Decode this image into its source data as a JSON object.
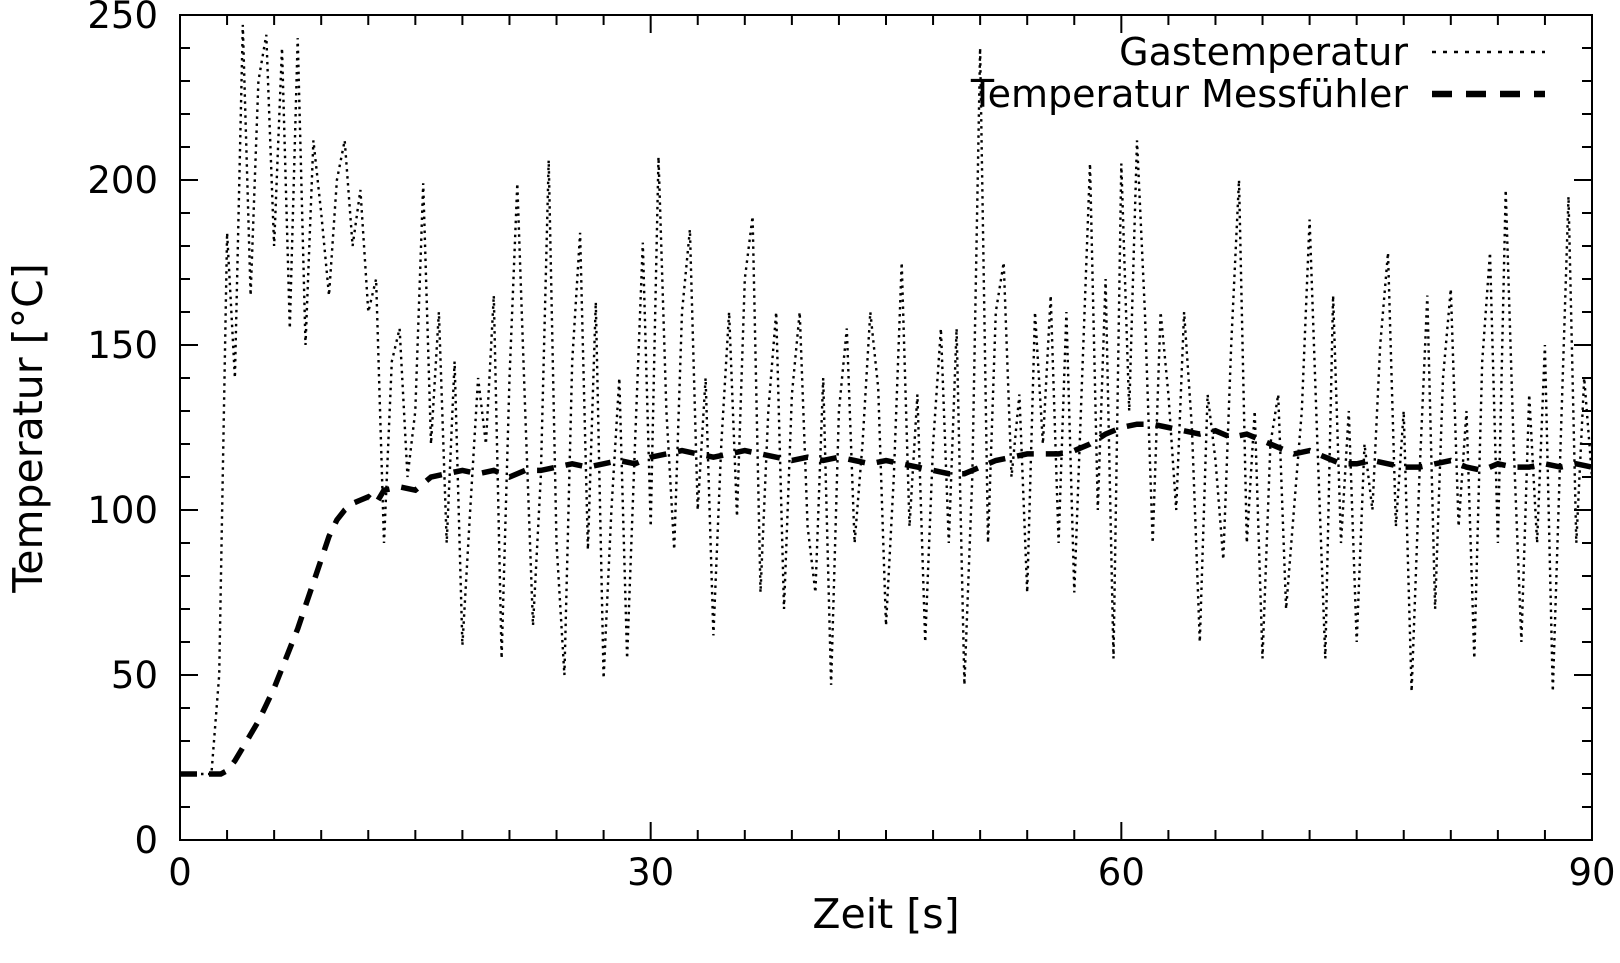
{
  "chart_data": {
    "type": "line",
    "title": "",
    "xlabel": "Zeit [s]",
    "ylabel": "Temperatur [°C]",
    "xlim": [
      0,
      90
    ],
    "ylim": [
      0,
      250
    ],
    "xticks_major": [
      0,
      30,
      60,
      90
    ],
    "xtick_minor_step": 3,
    "yticks_major": [
      0,
      50,
      100,
      150,
      200,
      250
    ],
    "ytick_minor_step": 10,
    "grid": false,
    "background_color": "#ffffff",
    "line_color": "#000000",
    "legend_position": "top-right",
    "series": [
      {
        "name": "Gastemperatur",
        "style": "dotted",
        "color": "#000000",
        "x_start": 0,
        "x_step": 0.5,
        "values": [
          20,
          20,
          20,
          20,
          20,
          50,
          184,
          140,
          247,
          165,
          230,
          244,
          180,
          240,
          155,
          243,
          150,
          212,
          190,
          165,
          200,
          212,
          180,
          197,
          160,
          170,
          90,
          145,
          155,
          110,
          130,
          199,
          120,
          160,
          90,
          145,
          59,
          100,
          140,
          120,
          165,
          55,
          140,
          199,
          130,
          65,
          110,
          206,
          90,
          50,
          145,
          184,
          88,
          163,
          49,
          100,
          140,
          55,
          120,
          181,
          95,
          207,
          130,
          88,
          160,
          185,
          100,
          140,
          62,
          120,
          160,
          98,
          170,
          189,
          75,
          130,
          160,
          70,
          135,
          160,
          95,
          75,
          140,
          47,
          130,
          155,
          90,
          120,
          160,
          137,
          65,
          110,
          175,
          95,
          135,
          60,
          120,
          155,
          90,
          155,
          47,
          110,
          240,
          90,
          160,
          175,
          110,
          135,
          75,
          160,
          120,
          165,
          90,
          160,
          75,
          140,
          205,
          100,
          170,
          55,
          205,
          130,
          212,
          160,
          90,
          160,
          135,
          100,
          160,
          125,
          60,
          135,
          115,
          85,
          150,
          200,
          90,
          130,
          55,
          120,
          135,
          70,
          100,
          130,
          188,
          120,
          55,
          165,
          90,
          130,
          60,
          120,
          100,
          150,
          178,
          95,
          130,
          45,
          110,
          165,
          70,
          140,
          167,
          95,
          130,
          55,
          145,
          178,
          90,
          197,
          120,
          60,
          135,
          90,
          150,
          45,
          120,
          195,
          90,
          140,
          110
        ]
      },
      {
        "name": "Temperatur Messfühler",
        "style": "dashed",
        "color": "#000000",
        "points": [
          [
            0,
            20
          ],
          [
            1,
            20
          ],
          [
            2,
            20
          ],
          [
            2.6,
            20
          ],
          [
            3,
            21
          ],
          [
            3.5,
            24
          ],
          [
            4,
            28
          ],
          [
            4.5,
            32
          ],
          [
            5,
            36
          ],
          [
            5.5,
            41
          ],
          [
            6,
            46
          ],
          [
            6.5,
            52
          ],
          [
            7,
            58
          ],
          [
            7.5,
            64
          ],
          [
            8,
            71
          ],
          [
            8.5,
            78
          ],
          [
            9,
            85
          ],
          [
            9.5,
            92
          ],
          [
            10,
            97
          ],
          [
            10.5,
            100
          ],
          [
            11,
            102
          ],
          [
            11.5,
            103
          ],
          [
            12,
            104
          ],
          [
            12.5,
            102
          ],
          [
            13,
            106
          ],
          [
            14,
            107
          ],
          [
            15,
            106
          ],
          [
            16,
            110
          ],
          [
            17,
            111
          ],
          [
            18,
            112
          ],
          [
            19,
            111
          ],
          [
            20,
            112
          ],
          [
            21,
            110
          ],
          [
            22,
            112
          ],
          [
            23,
            112
          ],
          [
            24,
            113
          ],
          [
            25,
            114
          ],
          [
            26,
            113
          ],
          [
            27,
            114
          ],
          [
            28,
            115
          ],
          [
            29,
            114
          ],
          [
            30,
            116
          ],
          [
            31,
            117
          ],
          [
            32,
            118
          ],
          [
            33,
            117
          ],
          [
            34,
            116
          ],
          [
            35,
            117
          ],
          [
            36,
            118
          ],
          [
            37,
            117
          ],
          [
            38,
            116
          ],
          [
            39,
            115
          ],
          [
            40,
            116
          ],
          [
            41,
            115
          ],
          [
            42,
            116
          ],
          [
            43,
            115
          ],
          [
            44,
            114
          ],
          [
            45,
            115
          ],
          [
            46,
            114
          ],
          [
            47,
            113
          ],
          [
            48,
            112
          ],
          [
            49,
            111
          ],
          [
            50,
            111
          ],
          [
            51,
            113
          ],
          [
            52,
            115
          ],
          [
            53,
            116
          ],
          [
            54,
            117
          ],
          [
            55,
            117
          ],
          [
            56,
            117
          ],
          [
            57,
            118
          ],
          [
            58,
            120
          ],
          [
            59,
            123
          ],
          [
            60,
            125
          ],
          [
            61,
            126
          ],
          [
            62,
            126
          ],
          [
            63,
            125
          ],
          [
            64,
            124
          ],
          [
            65,
            123
          ],
          [
            66,
            124
          ],
          [
            67,
            122
          ],
          [
            68,
            123
          ],
          [
            69,
            121
          ],
          [
            70,
            119
          ],
          [
            71,
            117
          ],
          [
            72,
            118
          ],
          [
            73,
            116
          ],
          [
            74,
            114
          ],
          [
            75,
            114
          ],
          [
            76,
            115
          ],
          [
            77,
            114
          ],
          [
            78,
            113
          ],
          [
            79,
            113
          ],
          [
            80,
            114
          ],
          [
            81,
            115
          ],
          [
            82,
            113
          ],
          [
            83,
            112
          ],
          [
            84,
            114
          ],
          [
            85,
            113
          ],
          [
            86,
            113
          ],
          [
            87,
            114
          ],
          [
            88,
            113
          ],
          [
            89,
            114
          ],
          [
            90,
            113
          ]
        ]
      }
    ]
  }
}
